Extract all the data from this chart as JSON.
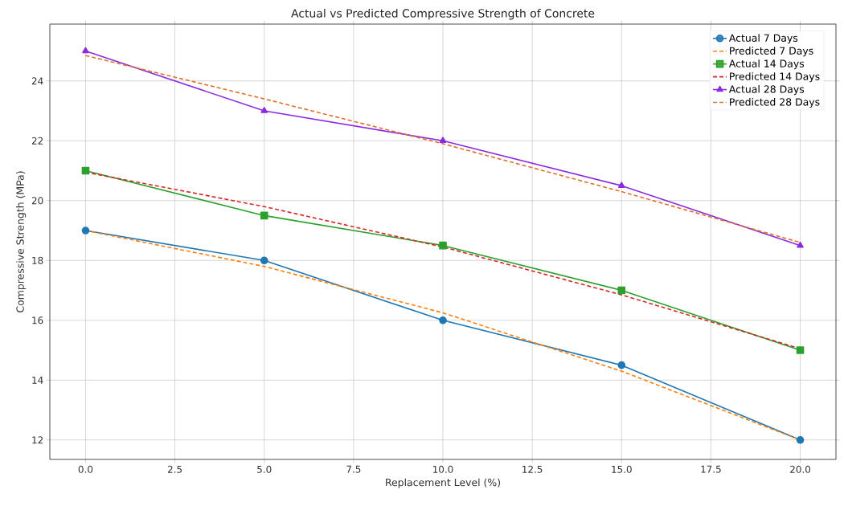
{
  "chart_data": {
    "type": "line",
    "title": "Actual vs Predicted Compressive Strength of Concrete",
    "xlabel": "Replacement Level (%)",
    "ylabel": "Compressive Strength (MPa)",
    "x": [
      0,
      5,
      10,
      15,
      20
    ],
    "series": [
      {
        "name": "Actual 7 Days",
        "color": "#1f77b4",
        "marker": "circle",
        "line_style": "solid",
        "values": [
          19,
          18,
          16,
          14.5,
          12
        ]
      },
      {
        "name": "Predicted 7 Days",
        "color": "#ff7f0e",
        "marker": "none",
        "line_style": "dashed",
        "values": [
          19.0,
          17.8,
          16.25,
          14.3,
          12.0
        ]
      },
      {
        "name": "Actual 14 Days",
        "color": "#2ca02c",
        "marker": "square",
        "line_style": "solid",
        "values": [
          21,
          19.5,
          18.5,
          17,
          15
        ]
      },
      {
        "name": "Predicted 14 Days",
        "color": "#d62728",
        "marker": "none",
        "line_style": "dashed",
        "values": [
          20.95,
          19.8,
          18.45,
          16.85,
          15.05
        ]
      },
      {
        "name": "Actual 28 Days",
        "color": "#8a2be2",
        "marker": "triangle",
        "line_style": "solid",
        "values": [
          25,
          23,
          22,
          20.5,
          18.5
        ]
      },
      {
        "name": "Predicted 28 Days",
        "color": "#e0702a",
        "marker": "none",
        "line_style": "dashed",
        "values": [
          24.85,
          23.4,
          21.9,
          20.3,
          18.6
        ]
      }
    ],
    "xlim": [
      -1,
      21
    ],
    "ylim": [
      11.35,
      25.9
    ],
    "xticks": [
      {
        "value": 0,
        "label": "0.0"
      },
      {
        "value": 2.5,
        "label": "2.5"
      },
      {
        "value": 5,
        "label": "5.0"
      },
      {
        "value": 7.5,
        "label": "7.5"
      },
      {
        "value": 10,
        "label": "10.0"
      },
      {
        "value": 12.5,
        "label": "12.5"
      },
      {
        "value": 15,
        "label": "15.0"
      },
      {
        "value": 17.5,
        "label": "17.5"
      },
      {
        "value": 20,
        "label": "20.0"
      }
    ],
    "yticks": [
      12,
      14,
      16,
      18,
      20,
      22,
      24
    ],
    "grid": true,
    "legend": "top right"
  }
}
